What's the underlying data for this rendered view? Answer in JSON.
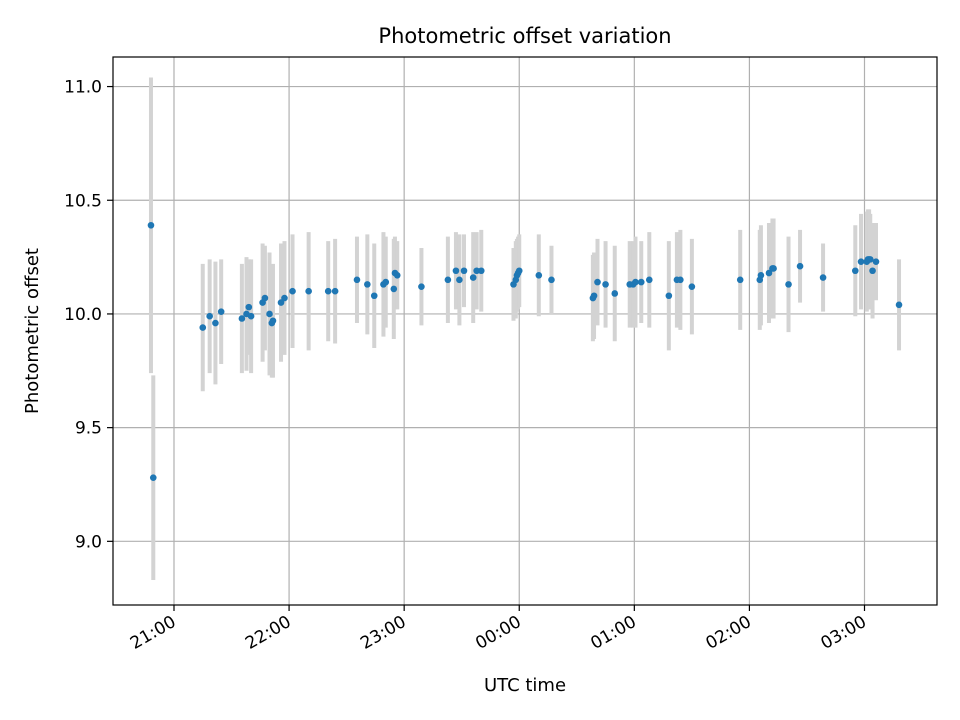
{
  "chart_data": {
    "type": "scatter",
    "title": "Photometric offset variation",
    "xlabel": "UTC time",
    "ylabel": "Photometric offset",
    "x_ticks": [
      "21:00",
      "22:00",
      "23:00",
      "00:00",
      "01:00",
      "02:00",
      "03:00"
    ],
    "x_tick_hours": [
      21,
      22,
      23,
      24,
      25,
      26,
      27
    ],
    "y_ticks": [
      "9.0",
      "9.5",
      "10.0",
      "10.5",
      "11.0"
    ],
    "y_tick_values": [
      9.0,
      9.5,
      10.0,
      10.5,
      11.0
    ],
    "xlim_hours": [
      20.47,
      27.63
    ],
    "ylim": [
      8.72,
      11.13
    ],
    "grid": true,
    "marker_color": "#1f77b4",
    "errorbar_color": "#d3d3d3",
    "series": [
      {
        "x_hours": [
          20.8,
          20.82,
          21.25,
          21.31,
          21.36,
          21.41,
          21.59,
          21.63,
          21.65,
          21.67,
          21.77,
          21.79,
          21.83,
          21.85,
          21.86,
          21.93,
          21.96,
          22.03,
          22.17,
          22.34,
          22.4,
          22.59,
          22.68,
          22.74,
          22.82,
          22.84,
          22.91,
          22.92,
          22.94,
          23.15,
          23.38,
          23.45,
          23.48,
          23.52,
          23.6,
          23.63,
          23.67,
          23.95,
          23.97,
          23.98,
          23.99,
          24.0,
          24.17,
          24.28,
          24.64,
          24.65,
          24.68,
          24.75,
          24.83,
          24.96,
          24.99,
          25.01,
          25.06,
          25.13,
          25.3,
          25.37,
          25.4,
          25.5,
          25.92,
          26.09,
          26.1,
          26.17,
          26.2,
          26.21,
          26.34,
          26.44,
          26.64,
          26.92,
          26.97,
          27.02,
          27.03,
          27.04,
          27.05,
          27.07,
          27.1,
          27.3
        ],
        "y": [
          10.39,
          9.28,
          9.94,
          9.99,
          9.96,
          10.01,
          9.98,
          10.0,
          10.03,
          9.99,
          10.05,
          10.07,
          10.0,
          9.96,
          9.97,
          10.05,
          10.07,
          10.1,
          10.1,
          10.1,
          10.1,
          10.15,
          10.13,
          10.08,
          10.13,
          10.14,
          10.11,
          10.18,
          10.17,
          10.12,
          10.15,
          10.19,
          10.15,
          10.19,
          10.16,
          10.19,
          10.19,
          10.13,
          10.15,
          10.17,
          10.18,
          10.19,
          10.17,
          10.15,
          10.07,
          10.08,
          10.14,
          10.13,
          10.09,
          10.13,
          10.13,
          10.14,
          10.14,
          10.15,
          10.08,
          10.15,
          10.15,
          10.12,
          10.15,
          10.15,
          10.17,
          10.18,
          10.2,
          10.2,
          10.13,
          10.21,
          10.16,
          10.19,
          10.23,
          10.23,
          10.24,
          10.24,
          10.24,
          10.19,
          10.23,
          10.04
        ],
        "yerr": [
          0.65,
          0.45,
          0.28,
          0.25,
          0.27,
          0.23,
          0.24,
          0.25,
          0.21,
          0.25,
          0.26,
          0.23,
          0.27,
          0.24,
          0.25,
          0.26,
          0.25,
          0.25,
          0.26,
          0.22,
          0.23,
          0.19,
          0.22,
          0.23,
          0.23,
          0.2,
          0.22,
          0.16,
          0.15,
          0.17,
          0.19,
          0.17,
          0.2,
          0.16,
          0.2,
          0.17,
          0.18,
          0.16,
          0.17,
          0.16,
          0.16,
          0.16,
          0.18,
          0.15,
          0.19,
          0.19,
          0.19,
          0.19,
          0.21,
          0.19,
          0.19,
          0.2,
          0.18,
          0.21,
          0.24,
          0.21,
          0.22,
          0.21,
          0.22,
          0.22,
          0.22,
          0.22,
          0.22,
          0.22,
          0.21,
          0.16,
          0.15,
          0.2,
          0.21,
          0.22,
          0.22,
          0.22,
          0.2,
          0.21,
          0.17,
          0.2
        ]
      }
    ]
  }
}
